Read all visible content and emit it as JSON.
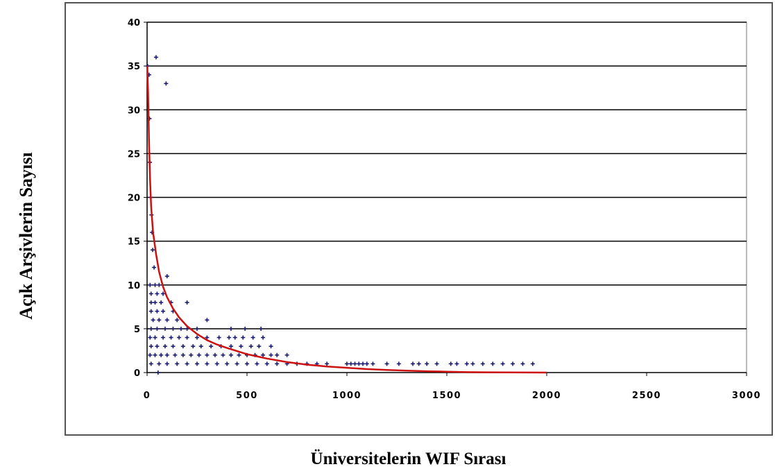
{
  "chart_data": {
    "type": "scatter",
    "title": "",
    "xlabel": "Üniversitelerin WIF Sırası",
    "ylabel": "Açık Arşivlerin Sayısı",
    "xlim": [
      0,
      3000
    ],
    "ylim": [
      0,
      40
    ],
    "x_ticks": [
      "0",
      "500",
      "1000",
      "1500",
      "2000",
      "2500",
      "3000"
    ],
    "y_ticks": [
      "0",
      "5",
      "10",
      "15",
      "20",
      "25",
      "30",
      "35",
      "40"
    ],
    "grid": "horizontal",
    "legend": "none",
    "colors": {
      "points": "#1a1a6e",
      "trend": "#cc1111",
      "grid": "#000000"
    },
    "series": [
      {
        "type": "scatter",
        "points": [
          [
            3,
            35
          ],
          [
            10,
            34
          ],
          [
            45,
            36
          ],
          [
            95,
            33
          ],
          [
            12,
            29
          ],
          [
            14,
            24
          ],
          [
            18,
            20
          ],
          [
            22,
            18
          ],
          [
            25,
            16
          ],
          [
            28,
            14
          ],
          [
            35,
            12
          ],
          [
            100,
            11
          ],
          [
            15,
            10
          ],
          [
            40,
            10
          ],
          [
            60,
            10
          ],
          [
            20,
            9
          ],
          [
            50,
            9
          ],
          [
            80,
            9
          ],
          [
            20,
            8
          ],
          [
            40,
            8
          ],
          [
            70,
            8
          ],
          [
            120,
            8
          ],
          [
            200,
            8
          ],
          [
            20,
            7
          ],
          [
            50,
            7
          ],
          [
            80,
            7
          ],
          [
            130,
            7
          ],
          [
            30,
            6
          ],
          [
            60,
            6
          ],
          [
            100,
            6
          ],
          [
            150,
            6
          ],
          [
            300,
            6
          ],
          [
            20,
            5
          ],
          [
            50,
            5
          ],
          [
            90,
            5
          ],
          [
            130,
            5
          ],
          [
            170,
            5
          ],
          [
            200,
            5
          ],
          [
            250,
            5
          ],
          [
            420,
            5
          ],
          [
            490,
            5
          ],
          [
            570,
            5
          ],
          [
            15,
            4
          ],
          [
            40,
            4
          ],
          [
            80,
            4
          ],
          [
            120,
            4
          ],
          [
            160,
            4
          ],
          [
            200,
            4
          ],
          [
            250,
            4
          ],
          [
            300,
            4
          ],
          [
            360,
            4
          ],
          [
            410,
            4
          ],
          [
            440,
            4
          ],
          [
            480,
            4
          ],
          [
            530,
            4
          ],
          [
            580,
            4
          ],
          [
            20,
            3
          ],
          [
            50,
            3
          ],
          [
            90,
            3
          ],
          [
            130,
            3
          ],
          [
            180,
            3
          ],
          [
            230,
            3
          ],
          [
            270,
            3
          ],
          [
            320,
            3
          ],
          [
            370,
            3
          ],
          [
            420,
            3
          ],
          [
            470,
            3
          ],
          [
            520,
            3
          ],
          [
            560,
            3
          ],
          [
            620,
            3
          ],
          [
            15,
            2
          ],
          [
            40,
            2
          ],
          [
            70,
            2
          ],
          [
            100,
            2
          ],
          [
            140,
            2
          ],
          [
            180,
            2
          ],
          [
            220,
            2
          ],
          [
            260,
            2
          ],
          [
            300,
            2
          ],
          [
            340,
            2
          ],
          [
            380,
            2
          ],
          [
            420,
            2
          ],
          [
            460,
            2
          ],
          [
            500,
            2
          ],
          [
            540,
            2
          ],
          [
            580,
            2
          ],
          [
            620,
            2
          ],
          [
            650,
            2
          ],
          [
            700,
            2
          ],
          [
            20,
            1
          ],
          [
            60,
            1
          ],
          [
            100,
            1
          ],
          [
            150,
            1
          ],
          [
            200,
            1
          ],
          [
            250,
            1
          ],
          [
            300,
            1
          ],
          [
            350,
            1
          ],
          [
            400,
            1
          ],
          [
            450,
            1
          ],
          [
            500,
            1
          ],
          [
            550,
            1
          ],
          [
            600,
            1
          ],
          [
            650,
            1
          ],
          [
            700,
            1
          ],
          [
            750,
            1
          ],
          [
            800,
            1
          ],
          [
            850,
            1
          ],
          [
            900,
            1
          ],
          [
            1000,
            1
          ],
          [
            1020,
            1
          ],
          [
            1040,
            1
          ],
          [
            1060,
            1
          ],
          [
            1080,
            1
          ],
          [
            1100,
            1
          ],
          [
            1130,
            1
          ],
          [
            1200,
            1
          ],
          [
            1260,
            1
          ],
          [
            1330,
            1
          ],
          [
            1360,
            1
          ],
          [
            1400,
            1
          ],
          [
            1450,
            1
          ],
          [
            1520,
            1
          ],
          [
            1550,
            1
          ],
          [
            1600,
            1
          ],
          [
            1630,
            1
          ],
          [
            1680,
            1
          ],
          [
            1730,
            1
          ],
          [
            1780,
            1
          ],
          [
            1830,
            1
          ],
          [
            1880,
            1
          ],
          [
            1930,
            1
          ],
          [
            55,
            0
          ]
        ]
      },
      {
        "type": "line",
        "points": [
          [
            1,
            35
          ],
          [
            5,
            32
          ],
          [
            10,
            26
          ],
          [
            15,
            22
          ],
          [
            20,
            19
          ],
          [
            30,
            16
          ],
          [
            45,
            13.5
          ],
          [
            60,
            11.5
          ],
          [
            80,
            9.8
          ],
          [
            100,
            8.6
          ],
          [
            130,
            7.3
          ],
          [
            160,
            6.3
          ],
          [
            200,
            5.3
          ],
          [
            250,
            4.4
          ],
          [
            300,
            3.7
          ],
          [
            350,
            3.2
          ],
          [
            400,
            2.8
          ],
          [
            500,
            2.1
          ],
          [
            600,
            1.6
          ],
          [
            700,
            1.2
          ],
          [
            800,
            0.9
          ],
          [
            900,
            0.7
          ],
          [
            1000,
            0.55
          ],
          [
            1100,
            0.4
          ],
          [
            1200,
            0.3
          ],
          [
            1300,
            0.22
          ],
          [
            1400,
            0.15
          ],
          [
            1500,
            0.1
          ],
          [
            1600,
            0.05
          ],
          [
            1700,
            0.03
          ],
          [
            1800,
            0.02
          ],
          [
            1900,
            0.01
          ],
          [
            2000,
            0
          ]
        ]
      }
    ]
  }
}
